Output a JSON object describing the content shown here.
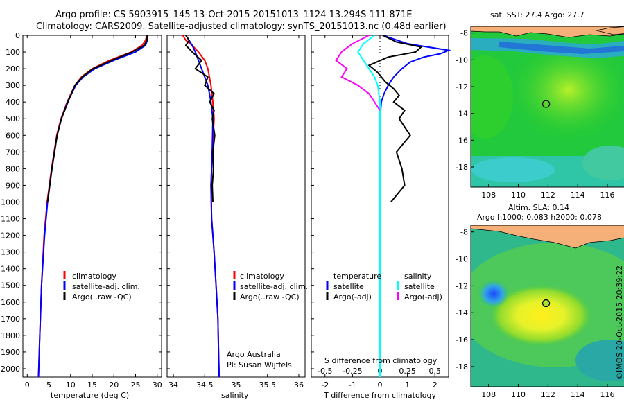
{
  "header": {
    "line1": "Argo profile: CS 5903915_145 13-Oct-2015 20151013_1124 13.294S 111.871E",
    "line2": "Climatology: CARS2009. Satellite-adjusted climatology: synTS_20151013.nc (0.48d earlier)"
  },
  "credit": "©IMOS 20-Oct-2015 20:39:22",
  "colors": {
    "climatology": "#ff0000",
    "satellite": "#0000ff",
    "argo": "#000000",
    "satellite_s": "#00ffff",
    "argo_s": "#ff00ff"
  },
  "chart_data": [
    {
      "id": "temperature",
      "type": "line",
      "xlabel": "temperature (deg C)",
      "ylabel": "",
      "xlim": [
        -1,
        31
      ],
      "ylim": [
        2050,
        0
      ],
      "xticks": [
        "0",
        "5",
        "10",
        "15",
        "20",
        "25",
        "30"
      ],
      "yticks": [
        "0",
        "100",
        "200",
        "300",
        "400",
        "500",
        "600",
        "700",
        "800",
        "900",
        "1000",
        "1100",
        "1200",
        "1300",
        "1400",
        "1500",
        "1600",
        "1700",
        "1800",
        "1900",
        "2000"
      ],
      "legend": [
        "climatology",
        "satellite-adj. clim.",
        "Argo(..raw -QC)"
      ],
      "series": [
        {
          "name": "climatology",
          "color": "#ff0000",
          "depth": [
            0,
            30,
            60,
            100,
            150,
            200,
            250,
            300,
            400,
            500,
            600,
            800,
            1000,
            1200,
            1500,
            1800,
            2050
          ],
          "values": [
            27.6,
            27.3,
            26.5,
            24,
            19,
            15,
            12.5,
            11,
            9.2,
            7.8,
            6.8,
            5.6,
            4.6,
            3.9,
            3.3,
            2.9,
            2.6
          ]
        },
        {
          "name": "satellite-adj. clim.",
          "color": "#0000ff",
          "depth": [
            0,
            30,
            60,
            100,
            150,
            200,
            250,
            300,
            400,
            500,
            600,
            800,
            1000,
            1200,
            1500,
            1800,
            2050
          ],
          "values": [
            27.7,
            27.7,
            27.3,
            25,
            20,
            15.6,
            12.9,
            11.2,
            9.3,
            7.9,
            6.9,
            5.7,
            4.7,
            4.0,
            3.3,
            2.9,
            2.6
          ]
        },
        {
          "name": "Argo(..raw -QC)",
          "color": "#000000",
          "depth": [
            0,
            30,
            60,
            100,
            150,
            200,
            250,
            300,
            400,
            500,
            600,
            800,
            1000
          ],
          "values": [
            27.7,
            27.6,
            27.0,
            24.2,
            19.5,
            15.2,
            12.7,
            11.0,
            9.4,
            7.9,
            6.9,
            5.7,
            4.7
          ]
        }
      ]
    },
    {
      "id": "salinity",
      "type": "line",
      "xlabel": "salinity",
      "xlim": [
        33.9,
        36.1
      ],
      "ylim": [
        2050,
        0
      ],
      "xticks": [
        "34",
        "34.5",
        "35",
        "35.5",
        "36"
      ],
      "legend": [
        "climatology",
        "satellite-adj. clim.",
        "Argo(..raw -QC)"
      ],
      "annotations": [
        "Argo Australia",
        "PI: Susan Wijffels"
      ],
      "series": [
        {
          "name": "climatology",
          "color": "#ff0000",
          "depth": [
            0,
            30,
            60,
            100,
            150,
            200,
            300,
            400,
            500,
            700,
            900,
            1100,
            1300,
            1500,
            1700,
            1900,
            2050
          ],
          "values": [
            34.15,
            34.2,
            34.3,
            34.4,
            34.5,
            34.55,
            34.6,
            34.63,
            34.65,
            34.62,
            34.6,
            34.61,
            34.65,
            34.68,
            34.71,
            34.72,
            34.73
          ]
        },
        {
          "name": "satellite-adj. clim.",
          "color": "#0000ff",
          "depth": [
            0,
            30,
            60,
            100,
            150,
            200,
            300,
            400,
            500,
            700,
            900,
            1100,
            1300,
            1500,
            1700,
            1900,
            2050
          ],
          "values": [
            34.2,
            34.25,
            34.3,
            34.35,
            34.4,
            34.45,
            34.55,
            34.6,
            34.63,
            34.62,
            34.6,
            34.61,
            34.65,
            34.68,
            34.71,
            34.72,
            34.73
          ]
        },
        {
          "name": "Argo(..raw -QC)",
          "color": "#000000",
          "depth": [
            0,
            30,
            60,
            100,
            150,
            200,
            250,
            300,
            350,
            400,
            450,
            500,
            600,
            700,
            800,
            900,
            1000
          ],
          "values": [
            34.2,
            34.25,
            34.2,
            34.3,
            34.45,
            34.35,
            34.55,
            34.5,
            34.65,
            34.58,
            34.65,
            34.62,
            34.66,
            34.63,
            34.64,
            34.62,
            34.63
          ]
        }
      ]
    },
    {
      "id": "differences",
      "type": "line",
      "xlabel": "T difference from climatology",
      "xlabel2": "S difference from climatology",
      "xlim": [
        -2.5,
        2.5
      ],
      "ylim": [
        2050,
        0
      ],
      "xticks": [
        "-2",
        "-1",
        "0",
        "1",
        "2"
      ],
      "xticks2": [
        "-0.5",
        "-0.25",
        "0",
        "0.25",
        "0.5"
      ],
      "legend_t_title": "temperature",
      "legend_s_title": "salinity",
      "legend": [
        "satellite",
        "Argo(-adj)",
        "satellite",
        "Argo(-adj)"
      ],
      "series": [
        {
          "name": "T satellite",
          "color": "#0000ff",
          "depth": [
            0,
            50,
            90,
            110,
            130,
            160,
            200,
            250,
            300,
            350,
            400,
            500,
            700,
            1000,
            1500,
            2050
          ],
          "values": [
            0.1,
            1.0,
            2.5,
            2.2,
            1.6,
            1.1,
            0.8,
            0.5,
            0.3,
            0.15,
            0.05,
            0,
            0,
            0,
            0,
            0
          ]
        },
        {
          "name": "T Argo(-adj)",
          "color": "#000000",
          "depth": [
            0,
            40,
            70,
            100,
            130,
            180,
            220,
            280,
            320,
            360,
            400,
            450,
            500,
            600,
            700,
            800,
            900,
            1000
          ],
          "values": [
            0.1,
            0.6,
            1.5,
            1.3,
            0.3,
            -0.4,
            -0.1,
            0.2,
            0.5,
            0.7,
            0.5,
            0.9,
            0.7,
            1.1,
            0.6,
            0.8,
            0.9,
            0.4
          ]
        },
        {
          "name": "S satellite",
          "color": "#00ffff",
          "depth": [
            0,
            50,
            100,
            150,
            200,
            250,
            300,
            400,
            600,
            1000,
            1500,
            2050
          ],
          "values": [
            -0.05,
            -0.15,
            -0.2,
            -0.15,
            -0.1,
            -0.05,
            -0.02,
            0,
            0,
            0,
            0,
            0
          ]
        },
        {
          "name": "S Argo(-adj)",
          "color": "#ff00ff",
          "depth": [
            0,
            50,
            100,
            150,
            200,
            250,
            300,
            350,
            400,
            450
          ],
          "values": [
            -0.1,
            -0.25,
            -0.35,
            -0.4,
            -0.3,
            -0.35,
            -0.2,
            -0.1,
            -0.05,
            0
          ]
        }
      ]
    },
    {
      "id": "sst_map",
      "type": "heatmap",
      "title": "sat. SST: 27.4 Argo: 27.7",
      "xlim": [
        106.8,
        117.4
      ],
      "ylim": [
        -19.5,
        -7.5
      ],
      "xticks": [
        "108",
        "110",
        "112",
        "114",
        "116"
      ],
      "yticks": [
        "-8",
        "-10",
        "-12",
        "-14",
        "-16",
        "-18"
      ],
      "argo_position": {
        "lon": 111.871,
        "lat": -13.294
      }
    },
    {
      "id": "sla_map",
      "type": "heatmap",
      "title_line1": "Altim. SLA: 0.14",
      "title_line2": "Argo h1000: 0.083 h2000: 0.078",
      "xlim": [
        106.8,
        117.4
      ],
      "ylim": [
        -19.5,
        -7.5
      ],
      "xticks": [
        "108",
        "110",
        "112",
        "114",
        "116"
      ],
      "yticks": [
        "-8",
        "-10",
        "-12",
        "-14",
        "-16",
        "-18"
      ],
      "argo_position": {
        "lon": 111.871,
        "lat": -13.294
      }
    }
  ]
}
